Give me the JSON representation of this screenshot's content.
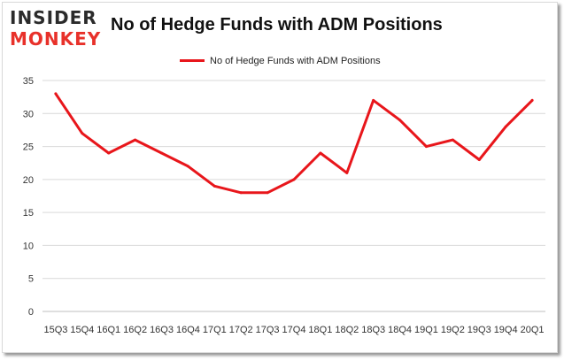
{
  "logo": {
    "top_text": "INSIDER",
    "bottom_text": "MONKEY"
  },
  "chart_data": {
    "type": "line",
    "title": "No of Hedge Funds with ADM Positions",
    "xlabel": "",
    "ylabel": "",
    "categories": [
      "15Q3",
      "15Q4",
      "16Q1",
      "16Q2",
      "16Q3",
      "16Q4",
      "17Q1",
      "17Q2",
      "17Q3",
      "17Q4",
      "18Q1",
      "18Q2",
      "18Q3",
      "18Q4",
      "19Q1",
      "19Q2",
      "19Q3",
      "19Q4",
      "20Q1"
    ],
    "series": [
      {
        "name": "No of Hedge Funds with ADM Positions",
        "color": "#e8161b",
        "values": [
          33,
          27,
          24,
          26,
          24,
          22,
          19,
          18,
          18,
          20,
          24,
          21,
          32,
          29,
          25,
          26,
          23,
          28,
          32
        ]
      }
    ],
    "ylim": [
      0,
      35
    ],
    "yticks": [
      0,
      5,
      10,
      15,
      20,
      25,
      30,
      35
    ],
    "grid": true,
    "legend_position": "top"
  }
}
